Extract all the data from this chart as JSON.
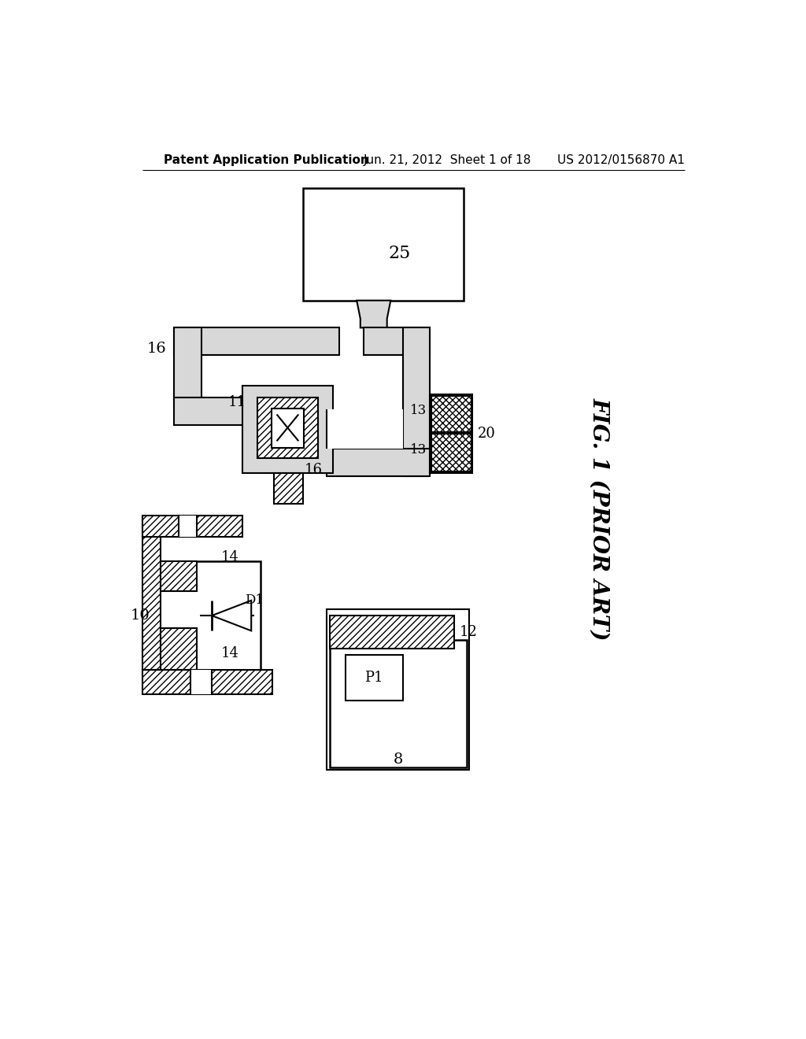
{
  "bg_color": "#ffffff",
  "header_left": "Patent Application Publication",
  "header_mid": "Jun. 21, 2012  Sheet 1 of 18",
  "header_right": "US 2012/0156870 A1",
  "fig_label": "FIG. 1 (PRIOR ART)",
  "dotted_fill": "#d8d8d8",
  "hatch_fill": "#aaaaaa"
}
